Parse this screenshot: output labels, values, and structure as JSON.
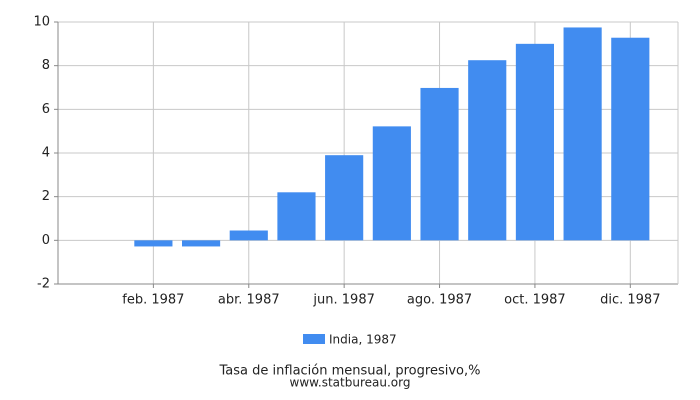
{
  "chart_data": {
    "type": "bar",
    "categories": [
      null,
      "feb. 1987",
      null,
      "abr. 1987",
      null,
      "jun. 1987",
      null,
      "ago. 1987",
      null,
      "oct. 1987",
      null,
      "dic. 1987"
    ],
    "series": [
      {
        "name": "India, 1987",
        "color": "#418cf0",
        "values": [
          null,
          -0.28,
          -0.28,
          0.45,
          2.2,
          3.9,
          5.22,
          6.98,
          8.25,
          9.0,
          9.75,
          9.28
        ]
      }
    ],
    "ylim": [
      -2,
      10
    ],
    "yticks": [
      -2,
      0,
      2,
      4,
      6,
      8,
      10
    ],
    "grid": true,
    "title": "Tasa de inflación mensual, progresivo,%",
    "source": "www.statbureau.org"
  }
}
